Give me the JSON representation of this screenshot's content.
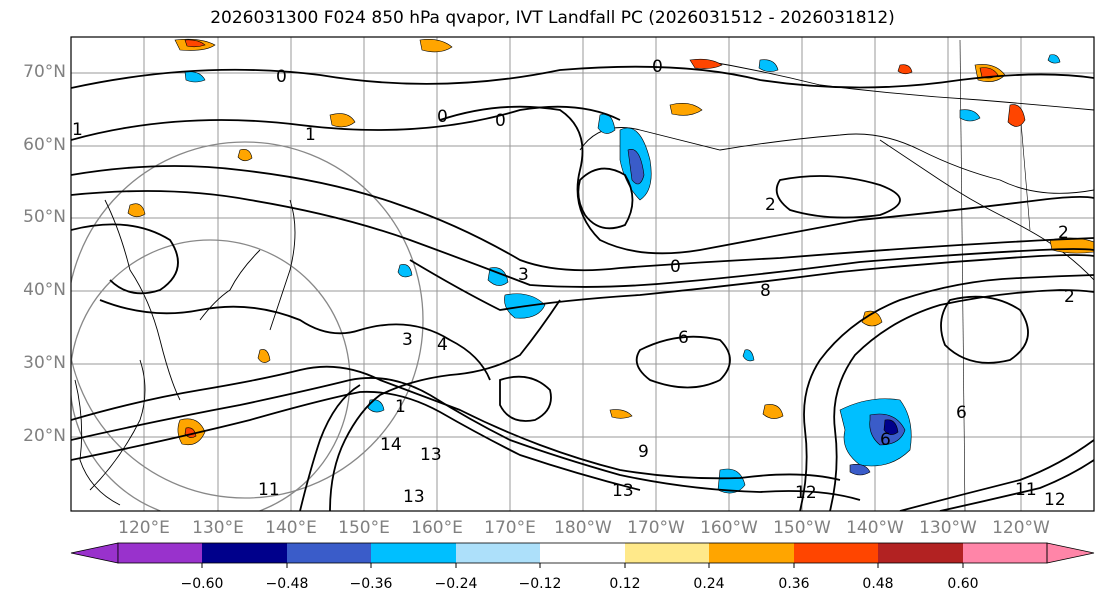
{
  "title": "2026031300 F024 850 hPa qvapor, IVT Landfall PC (2026031512 - 2026031812)",
  "lat_labels": [
    "70°N",
    "60°N",
    "50°N",
    "40°N",
    "30°N",
    "20°N"
  ],
  "lon_labels": [
    "120°E",
    "130°E",
    "140°E",
    "150°E",
    "160°E",
    "170°E",
    "180°W",
    "170°W",
    "160°W",
    "150°W",
    "140°W",
    "130°W",
    "120°W"
  ],
  "colorbar": {
    "colors": [
      "#9932CC",
      "#00008B",
      "#3A5CC9",
      "#00BFFF",
      "#ADE0FA",
      "#FFFFFF",
      "#FFE98A",
      "#FFA500",
      "#FF4500",
      "#B22222",
      "#FF85A8"
    ],
    "ticks": [
      "−0.60",
      "−0.48",
      "−0.36",
      "−0.24",
      "−0.12",
      "0.12",
      "0.24",
      "0.36",
      "0.48",
      "0.60"
    ]
  },
  "contour_labels": [
    "1",
    "0",
    "1",
    "0",
    "0",
    "0",
    "0",
    "2",
    "3",
    "4",
    "8",
    "6",
    "3",
    "2",
    "9",
    "12",
    "13",
    "13",
    "14",
    "13",
    "11",
    "11",
    "12",
    "6",
    "6",
    "1",
    "2"
  ]
}
